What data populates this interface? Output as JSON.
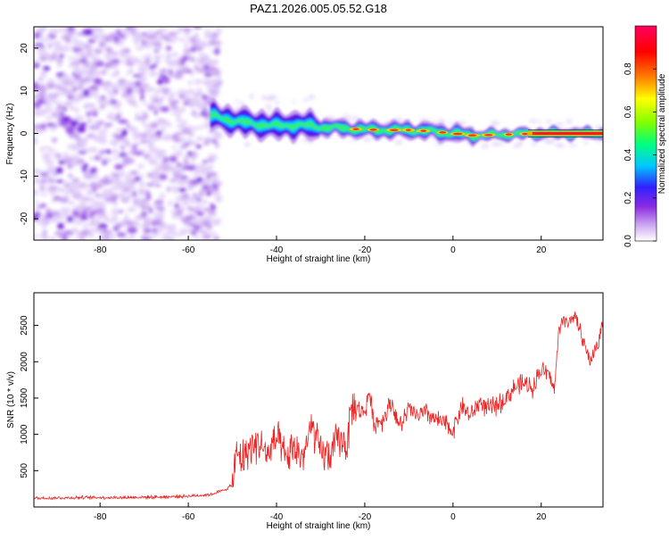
{
  "title": "PAZ1.2026.005.05.52.G18",
  "chart_data": [
    {
      "type": "heatmap",
      "xlabel": "Height of straight line (km)",
      "ylabel": "Frequency (Hz)",
      "xlim": [
        -95,
        34
      ],
      "ylim": [
        -25,
        25
      ],
      "xticks": [
        -80,
        -60,
        -40,
        -20,
        0,
        20
      ],
      "yticks": [
        -20,
        -10,
        0,
        10,
        20
      ],
      "xtick_labels": [
        "-80",
        "-60",
        "-40",
        "-20",
        "0",
        "20"
      ],
      "ytick_labels": [
        "-20",
        "-10",
        "0",
        "10",
        "20"
      ],
      "colorbar": {
        "label": "Normalized spectral amplitude",
        "range": [
          0,
          1
        ],
        "ticks": [
          0,
          0.2,
          0.4,
          0.6,
          0.8
        ],
        "tick_labels": [
          "0.0",
          "0.2",
          "0.4",
          "0.6",
          "0.8"
        ],
        "colors": [
          "#ffffff",
          "#c8a0f0",
          "#8a2be2",
          "#3020ff",
          "#00c8ff",
          "#00ff80",
          "#80ff00",
          "#ffff00",
          "#ff8000",
          "#ff0000",
          "#ff0060"
        ]
      },
      "features": [
        {
          "name": "scattered noise",
          "x_range": [
            -95,
            -55
          ],
          "freq_range": [
            -25,
            25
          ],
          "amplitude": [
            0.0,
            0.15
          ]
        },
        {
          "name": "signal band",
          "x_range": [
            -55,
            34
          ],
          "center_freq": [
            [
              -54,
              4.0
            ],
            [
              -50,
              3.0
            ],
            [
              -45,
              2.2
            ],
            [
              -40,
              1.8
            ],
            [
              -35,
              2.0
            ],
            [
              -30,
              1.5
            ],
            [
              -25,
              1.2
            ],
            [
              -20,
              0.9
            ],
            [
              -15,
              0.8
            ],
            [
              -10,
              0.8
            ],
            [
              -5,
              0.5
            ],
            [
              0,
              0.0
            ],
            [
              5,
              -0.5
            ],
            [
              10,
              -0.3
            ],
            [
              20,
              0.0
            ],
            [
              34,
              0.0
            ]
          ]
        }
      ]
    },
    {
      "type": "line",
      "xlabel": "Height of straight line (km)",
      "ylabel": "SNR (10 * v/v)",
      "xlim": [
        -95,
        34
      ],
      "ylim": [
        0,
        2950
      ],
      "xticks": [
        -80,
        -60,
        -40,
        -20,
        0,
        20
      ],
      "yticks": [
        500,
        1000,
        1500,
        2000,
        2500
      ],
      "xtick_labels": [
        "-80",
        "-60",
        "-40",
        "-20",
        "0",
        "20"
      ],
      "ytick_labels": [
        "500",
        "1000",
        "1500",
        "2000",
        "2500"
      ],
      "series": [
        {
          "name": "SNR",
          "color": "#ee2222",
          "x": [
            -95,
            -90,
            -85,
            -80,
            -75,
            -70,
            -65,
            -60,
            -55,
            -52,
            -50,
            -49,
            -48,
            -46,
            -44,
            -42,
            -40,
            -38,
            -36,
            -34,
            -32,
            -30,
            -28,
            -26,
            -24,
            -23,
            -22,
            -20,
            -19,
            -18,
            -16,
            -14,
            -12,
            -10,
            -8,
            -6,
            -4,
            -2,
            0,
            2,
            4,
            6,
            8,
            10,
            12,
            14,
            16,
            18,
            20,
            22,
            23,
            24,
            25,
            26,
            27,
            28,
            29,
            30,
            31,
            32,
            33,
            34
          ],
          "values": [
            120,
            125,
            130,
            130,
            130,
            135,
            140,
            150,
            170,
            230,
            300,
            750,
            650,
            820,
            900,
            700,
            950,
            650,
            800,
            700,
            1100,
            750,
            700,
            950,
            850,
            1400,
            1350,
            1300,
            1600,
            1150,
            1200,
            1450,
            1100,
            1350,
            1250,
            1300,
            1200,
            1150,
            1050,
            1400,
            1250,
            1450,
            1350,
            1400,
            1500,
            1650,
            1700,
            1650,
            1900,
            1800,
            1600,
            2450,
            2600,
            2500,
            2650,
            2550,
            2400,
            2200,
            2000,
            2150,
            2250,
            2600
          ]
        }
      ]
    }
  ]
}
